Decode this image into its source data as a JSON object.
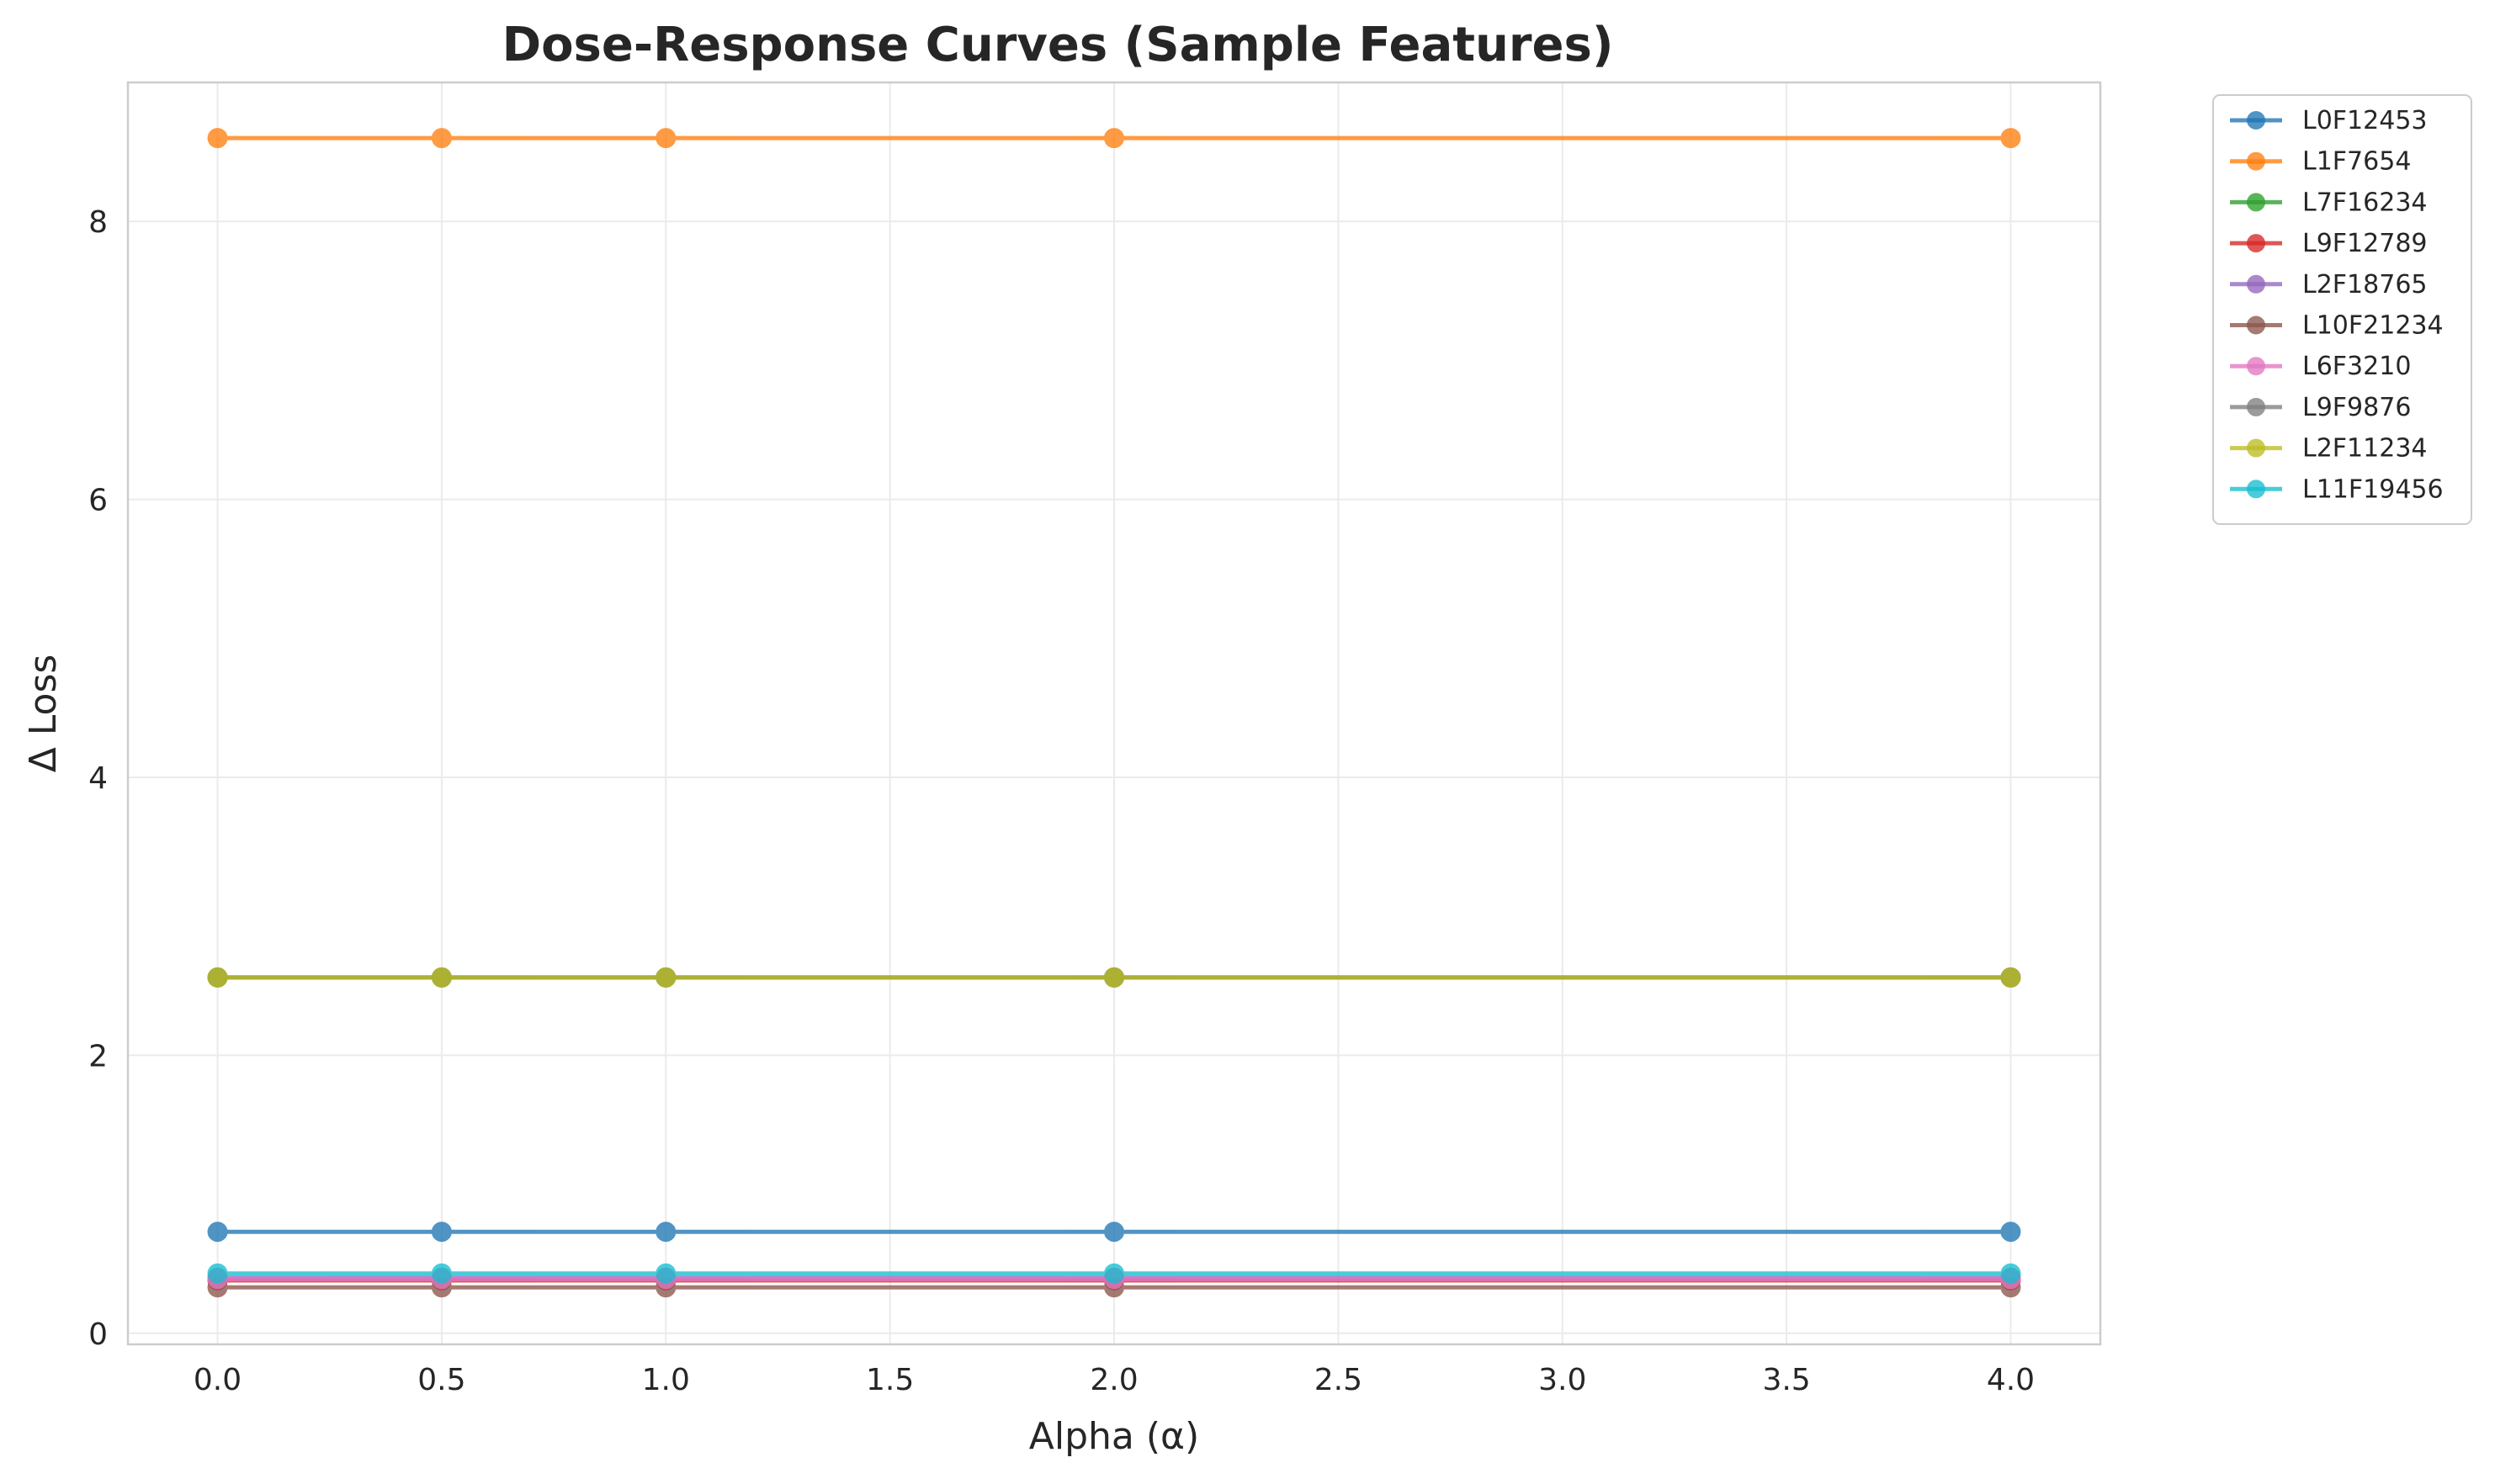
{
  "chart_data": {
    "type": "line",
    "title": "Dose-Response Curves (Sample Features)",
    "xlabel": "Alpha (α)",
    "ylabel": "Δ Loss",
    "xlim": [
      -0.2,
      4.2
    ],
    "ylim": [
      -0.08,
      9.0
    ],
    "xticks": [
      0.0,
      0.5,
      1.0,
      1.5,
      2.0,
      2.5,
      3.0,
      3.5,
      4.0
    ],
    "xtick_labels": [
      "0.0",
      "0.5",
      "1.0",
      "1.5",
      "2.0",
      "2.5",
      "3.0",
      "3.5",
      "4.0"
    ],
    "yticks": [
      0,
      2,
      4,
      6,
      8
    ],
    "ytick_labels": [
      "0",
      "2",
      "4",
      "6",
      "8"
    ],
    "grid": true,
    "legend_position": "outside-top-right",
    "x": [
      0.0,
      0.5,
      1.0,
      2.0,
      4.0
    ],
    "series": [
      {
        "name": "L0F12453",
        "color": "#1f77b4",
        "values": [
          0.73,
          0.73,
          0.73,
          0.73,
          0.73
        ]
      },
      {
        "name": "L1F7654",
        "color": "#ff7f0e",
        "values": [
          8.6,
          8.6,
          8.6,
          8.6,
          8.6
        ]
      },
      {
        "name": "L7F16234",
        "color": "#2ca02c",
        "values": [
          2.56,
          2.56,
          2.56,
          2.56,
          2.56
        ]
      },
      {
        "name": "L9F12789",
        "color": "#d62728",
        "values": [
          0.38,
          0.38,
          0.38,
          0.38,
          0.38
        ]
      },
      {
        "name": "L2F18765",
        "color": "#9467bd",
        "values": [
          0.4,
          0.4,
          0.4,
          0.4,
          0.4
        ]
      },
      {
        "name": "L10F21234",
        "color": "#8c564b",
        "values": [
          0.33,
          0.33,
          0.33,
          0.33,
          0.33
        ]
      },
      {
        "name": "L6F3210",
        "color": "#e377c2",
        "values": [
          0.39,
          0.39,
          0.39,
          0.39,
          0.39
        ]
      },
      {
        "name": "L9F9876",
        "color": "#7f7f7f",
        "values": [
          2.56,
          2.56,
          2.56,
          2.56,
          2.56
        ]
      },
      {
        "name": "L2F11234",
        "color": "#bcbd22",
        "values": [
          2.56,
          2.56,
          2.56,
          2.56,
          2.56
        ]
      },
      {
        "name": "L11F19456",
        "color": "#17becf",
        "values": [
          0.43,
          0.43,
          0.43,
          0.43,
          0.43
        ]
      }
    ]
  }
}
